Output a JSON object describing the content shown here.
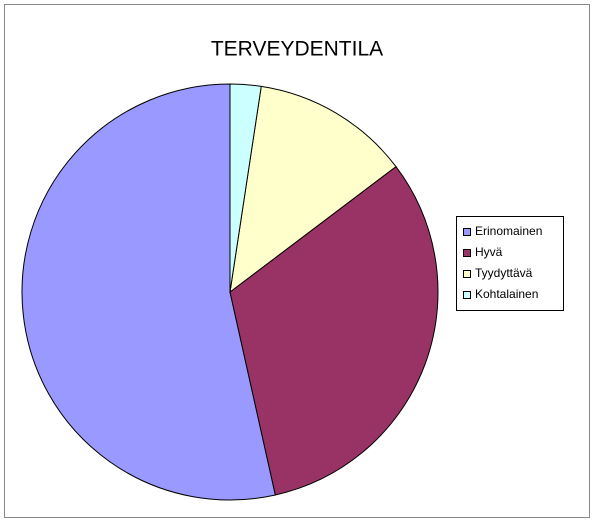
{
  "chart_data": {
    "type": "pie",
    "title": "TERVEYDENTILA",
    "categories": [
      "Erinomainen",
      "Hyvä",
      "Tyydyttävä",
      "Kohtalainen"
    ],
    "values": [
      53.5,
      31.8,
      12.3,
      2.4
    ],
    "colors": [
      "#9999ff",
      "#993366",
      "#ffffcc",
      "#ccffff"
    ],
    "legend": "right"
  }
}
